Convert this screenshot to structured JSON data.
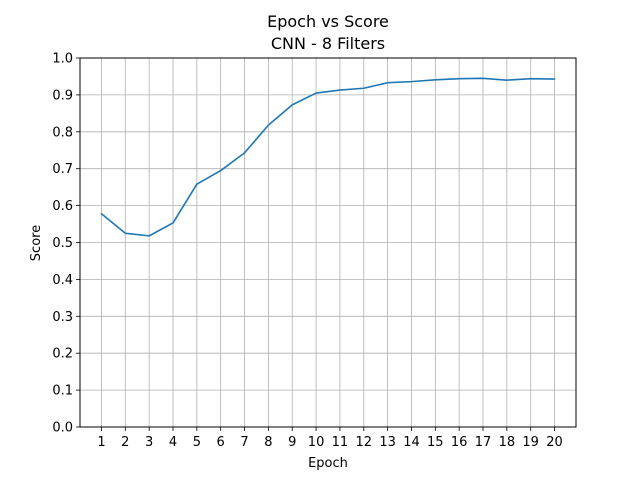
{
  "chart_data": {
    "type": "line",
    "title": "Epoch vs Score",
    "subtitle": "CNN - 8 Filters",
    "xlabel": "Epoch",
    "ylabel": "Score",
    "x": [
      1,
      2,
      3,
      4,
      5,
      6,
      7,
      8,
      9,
      10,
      11,
      12,
      13,
      14,
      15,
      16,
      17,
      18,
      19,
      20
    ],
    "x_tick_labels": [
      "1",
      "2",
      "3",
      "4",
      "5",
      "6",
      "7",
      "8",
      "9",
      "10",
      "11",
      "12",
      "13",
      "14",
      "15",
      "16",
      "17",
      "18",
      "19",
      "20"
    ],
    "y_tick_labels": [
      "0.0",
      "0.1",
      "0.2",
      "0.3",
      "0.4",
      "0.5",
      "0.6",
      "0.7",
      "0.8",
      "0.9",
      "1.0"
    ],
    "y_ticks": [
      0.0,
      0.1,
      0.2,
      0.3,
      0.4,
      0.5,
      0.6,
      0.7,
      0.8,
      0.9,
      1.0
    ],
    "series": [
      {
        "values": [
          0.578,
          0.525,
          0.518,
          0.553,
          0.658,
          0.695,
          0.743,
          0.818,
          0.873,
          0.905,
          0.913,
          0.918,
          0.933,
          0.936,
          0.941,
          0.944,
          0.945,
          0.94,
          0.944,
          0.943
        ],
        "color": "#1f77b4"
      }
    ],
    "xlim": [
      0.1,
      20.9
    ],
    "ylim": [
      0.0,
      1.0
    ],
    "grid": true
  }
}
